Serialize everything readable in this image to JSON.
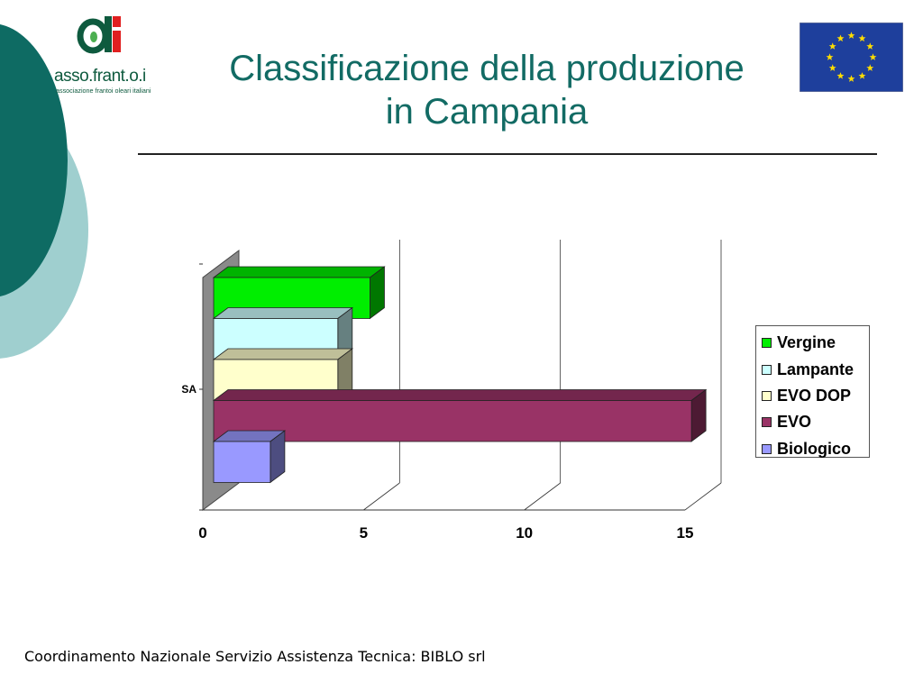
{
  "slide": {
    "title_line1": "Classificazione della produzione",
    "title_line2": "in Campania",
    "footer": "Coordinamento Nazionale Servizio Assistenza Tecnica: BIBLO srl"
  },
  "logo": {
    "mark": "a",
    "name": "asso.frant.o.i",
    "tagline": "associazione frantoi oleari italiani"
  },
  "colors": {
    "title": "#126b64",
    "decor_dark": "#0e6b63",
    "decor_light": "#9fcfcf",
    "eu_blue": "#1e3f9c",
    "eu_star": "#ffdd00"
  },
  "chart_data": {
    "type": "bar",
    "orientation": "horizontal",
    "style": "3d",
    "categories": [
      "SA"
    ],
    "series": [
      {
        "name": "Vergine",
        "values": [
          5.2
        ],
        "color": "#00ee00"
      },
      {
        "name": "Lampante",
        "values": [
          4.2
        ],
        "color": "#ccffff"
      },
      {
        "name": "EVO DOP",
        "values": [
          4.2
        ],
        "color": "#ffffcc"
      },
      {
        "name": "EVO",
        "values": [
          15.2
        ],
        "color": "#993366"
      },
      {
        "name": "Biologico",
        "values": [
          2.1
        ],
        "color": "#9999ff"
      }
    ],
    "xticks": [
      "0",
      "5",
      "10",
      "15"
    ],
    "xlim": [
      0,
      15
    ],
    "grid": true,
    "legend": "right"
  }
}
